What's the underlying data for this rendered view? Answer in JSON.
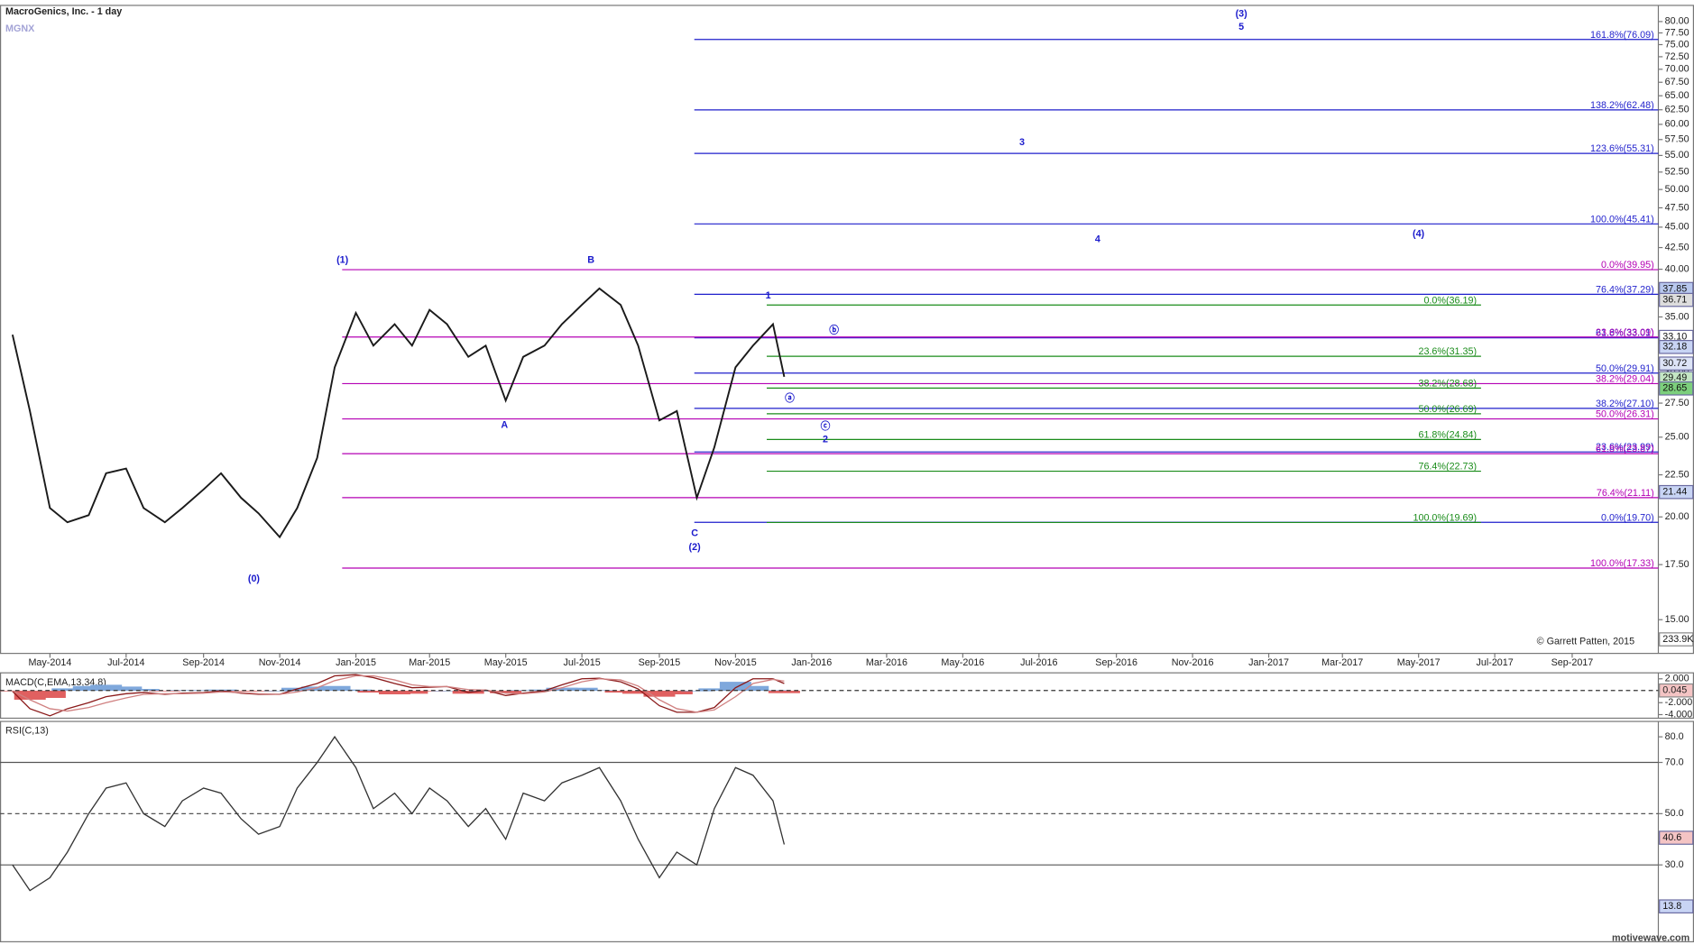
{
  "chart_data": [
    {
      "type": "line",
      "title": "MacroGenics, Inc. - 1 day",
      "subtitle": "MGNX",
      "log_scale": true,
      "xlim": [
        "2014-03-22",
        "2017-11-09"
      ],
      "ylim": [
        13.65,
        83.7
      ],
      "xticks": [
        {
          "value": "2014-05-01",
          "label": "May-2014"
        },
        {
          "value": "2014-07-01",
          "label": "Jul-2014"
        },
        {
          "value": "2014-09-01",
          "label": "Sep-2014"
        },
        {
          "value": "2014-11-01",
          "label": "Nov-2014"
        },
        {
          "value": "2015-01-01",
          "label": "Jan-2015"
        },
        {
          "value": "2015-03-01",
          "label": "Mar-2015"
        },
        {
          "value": "2015-05-01",
          "label": "May-2015"
        },
        {
          "value": "2015-07-01",
          "label": "Jul-2015"
        },
        {
          "value": "2015-09-01",
          "label": "Sep-2015"
        },
        {
          "value": "2015-11-01",
          "label": "Nov-2015"
        },
        {
          "value": "2016-01-01",
          "label": "Jan-2016"
        },
        {
          "value": "2016-03-01",
          "label": "Mar-2016"
        },
        {
          "value": "2016-05-01",
          "label": "May-2016"
        },
        {
          "value": "2016-07-01",
          "label": "Jul-2016"
        },
        {
          "value": "2016-09-01",
          "label": "Sep-2016"
        },
        {
          "value": "2016-11-01",
          "label": "Nov-2016"
        },
        {
          "value": "2017-01-01",
          "label": "Jan-2017"
        },
        {
          "value": "2017-03-01",
          "label": "Mar-2017"
        },
        {
          "value": "2017-05-01",
          "label": "May-2017"
        },
        {
          "value": "2017-07-01",
          "label": "Jul-2017"
        },
        {
          "value": "2017-09-01",
          "label": "Sep-2017"
        }
      ],
      "yticks": [
        {
          "value": 15,
          "label": "15.00"
        },
        {
          "value": 17.5,
          "label": "17.50"
        },
        {
          "value": 20,
          "label": "20.00"
        },
        {
          "value": 22.5,
          "label": "22.50"
        },
        {
          "value": 25,
          "label": "25.00"
        },
        {
          "value": 27.5,
          "label": "27.50"
        },
        {
          "value": 30,
          "label": "30.00"
        },
        {
          "value": 32.5,
          "label": "32.50"
        },
        {
          "value": 35,
          "label": "35.00"
        },
        {
          "value": 37.5,
          "label": "37.50"
        },
        {
          "value": 40,
          "label": "40.00"
        },
        {
          "value": 42.5,
          "label": "42.50"
        },
        {
          "value": 45,
          "label": "45.00"
        },
        {
          "value": 47.5,
          "label": "47.50"
        },
        {
          "value": 50,
          "label": "50.00"
        },
        {
          "value": 52.5,
          "label": "52.50"
        },
        {
          "value": 55,
          "label": "55.00"
        },
        {
          "value": 57.5,
          "label": "57.50"
        },
        {
          "value": 60,
          "label": "60.00"
        },
        {
          "value": 62.5,
          "label": "62.50"
        },
        {
          "value": 65,
          "label": "65.00"
        },
        {
          "value": 67.5,
          "label": "67.50"
        },
        {
          "value": 70,
          "label": "70.00"
        },
        {
          "value": 72.5,
          "label": "72.50"
        },
        {
          "value": 75,
          "label": "75.00"
        },
        {
          "value": 77.5,
          "label": "77.50"
        },
        {
          "value": 80,
          "label": "80.00"
        }
      ],
      "x": [
        "2014-04-01",
        "2014-04-15",
        "2014-05-01",
        "2014-05-15",
        "2014-06-01",
        "2014-06-15",
        "2014-07-01",
        "2014-07-15",
        "2014-08-01",
        "2014-08-15",
        "2014-09-01",
        "2014-09-15",
        "2014-10-01",
        "2014-10-15",
        "2014-11-01",
        "2014-11-15",
        "2014-12-01",
        "2014-12-15",
        "2015-01-01",
        "2015-01-15",
        "2015-02-01",
        "2015-02-15",
        "2015-03-01",
        "2015-03-15",
        "2015-04-01",
        "2015-04-15",
        "2015-05-01",
        "2015-05-15",
        "2015-06-01",
        "2015-06-15",
        "2015-07-01",
        "2015-07-15",
        "2015-08-01",
        "2015-08-15",
        "2015-09-01",
        "2015-09-15",
        "2015-10-01",
        "2015-10-15",
        "2015-11-01",
        "2015-11-15",
        "2015-12-01",
        "2015-12-10"
      ],
      "series": [
        {
          "color": "#1a1a1a",
          "values": [
            33.3,
            26.9,
            20.5,
            19.7,
            20.1,
            22.6,
            22.9,
            20.5,
            19.7,
            20.5,
            21.6,
            22.6,
            21.1,
            20.2,
            18.9,
            20.5,
            23.6,
            30.4,
            35.4,
            32.3,
            34.3,
            32.3,
            35.7,
            34.3,
            31.3,
            32.3,
            27.7,
            31.3,
            32.3,
            34.3,
            36.2,
            37.9,
            36.2,
            32.3,
            26.2,
            26.9,
            21.1,
            24.3,
            30.4,
            32.3,
            34.3,
            29.6
          ]
        }
      ],
      "fib_lines": [
        {
          "value": 76.09,
          "label": "161.8%(76.09)",
          "color": "#1f1fcc",
          "from": "2015-09-29"
        },
        {
          "value": 62.48,
          "label": "138.2%(62.48)",
          "color": "#1f1fcc",
          "from": "2015-09-29"
        },
        {
          "value": 55.31,
          "label": "123.6%(55.31)",
          "color": "#1f1fcc",
          "from": "2015-09-29"
        },
        {
          "value": 45.41,
          "label": "100.0%(45.41)",
          "color": "#1f1fcc",
          "from": "2015-09-29"
        },
        {
          "value": 37.29,
          "label": "76.4%(37.29)",
          "color": "#1f1fcc",
          "from": "2015-09-29"
        },
        {
          "value": 33.01,
          "label": "61.8%(33.01)",
          "color": "#1f1fcc",
          "from": "2015-09-29"
        },
        {
          "value": 29.91,
          "label": "50.0%(29.91)",
          "color": "#1f1fcc",
          "from": "2015-09-29"
        },
        {
          "value": 27.1,
          "label": "38.2%(27.10)",
          "color": "#1f1fcc",
          "from": "2015-09-29"
        },
        {
          "value": 23.99,
          "label": "23.6%(23.99)",
          "color": "#1f1fcc",
          "from": "2015-09-29"
        },
        {
          "value": 19.7,
          "label": "0.0%(19.70)",
          "color": "#1f1fcc",
          "from": "2015-09-29"
        },
        {
          "value": 39.95,
          "label": "0.0%(39.95)",
          "color": "#b400b4",
          "from": "2014-12-21"
        },
        {
          "value": 33.09,
          "label": "23.6%(33.09)",
          "color": "#b400b4",
          "from": "2014-12-21"
        },
        {
          "value": 29.04,
          "label": "38.2%(29.04)",
          "color": "#b400b4",
          "from": "2014-12-21"
        },
        {
          "value": 26.31,
          "label": "50.0%(26.31)",
          "color": "#b400b4",
          "from": "2014-12-21"
        },
        {
          "value": 23.87,
          "label": "61.8%(23.87)",
          "color": "#b400b4",
          "from": "2014-12-21"
        },
        {
          "value": 21.11,
          "label": "76.4%(21.11)",
          "color": "#b400b4",
          "from": "2014-12-21"
        },
        {
          "value": 17.33,
          "label": "100.0%(17.33)",
          "color": "#b400b4",
          "from": "2014-12-21"
        },
        {
          "value": 36.19,
          "label": "0.0%(36.19)",
          "color": "#1a8c1a",
          "from": "2015-11-26",
          "to": "2017-06-20"
        },
        {
          "value": 31.35,
          "label": "23.6%(31.35)",
          "color": "#1a8c1a",
          "from": "2015-11-26",
          "to": "2017-06-20"
        },
        {
          "value": 28.68,
          "label": "38.2%(28.68)",
          "color": "#1a8c1a",
          "from": "2015-11-26",
          "to": "2017-06-20"
        },
        {
          "value": 26.69,
          "label": "50.0%(26.69)",
          "color": "#1a8c1a",
          "from": "2015-11-26",
          "to": "2017-06-20"
        },
        {
          "value": 24.84,
          "label": "61.8%(24.84)",
          "color": "#1a8c1a",
          "from": "2015-11-26",
          "to": "2017-06-20"
        },
        {
          "value": 22.73,
          "label": "76.4%(22.73)",
          "color": "#1a8c1a",
          "from": "2015-11-26",
          "to": "2017-06-20"
        },
        {
          "value": 19.69,
          "label": "100.0%(19.69)",
          "color": "#1a8c1a",
          "from": "2015-11-26",
          "to": "2017-06-20"
        }
      ],
      "wave_labels": [
        "(0)",
        "(1)",
        "A",
        "B",
        "C",
        "(2)",
        "1",
        "ⓐ",
        "ⓑ",
        "ⓒ",
        "2",
        "3",
        "4",
        "5",
        "(3)",
        "(4)"
      ],
      "price_tags": [
        {
          "value": 37.85,
          "color": "#b8c8ee"
        },
        {
          "value": 36.71,
          "color": "#dddddd"
        },
        {
          "value": 33.1,
          "label": "33.10",
          "color": "#ffffff"
        },
        {
          "value": 32.18,
          "color": "#c8d4f4"
        },
        {
          "value": 30.72,
          "color": "#dde4f6"
        },
        {
          "value": 29.49,
          "color": "#c4e6c4"
        },
        {
          "value": 28.65,
          "color": "#7ccf7c"
        },
        {
          "value": 21.44,
          "color": "#c8d4f4"
        }
      ],
      "volume_tag": "233.9K",
      "annotation": "© Garrett Patten, 2015"
    },
    {
      "type": "line",
      "title": "MACD(C,EMA,13,34,8)",
      "ylim": [
        -4.6,
        3.0
      ],
      "yticks": [
        {
          "value": 2,
          "label": "2.000"
        },
        {
          "value": -2,
          "label": "-2.000"
        },
        {
          "value": -4,
          "label": "-4.000"
        }
      ],
      "x": [
        "2014-04-01",
        "2014-04-15",
        "2014-05-01",
        "2014-05-15",
        "2014-06-01",
        "2014-06-15",
        "2014-07-01",
        "2014-07-15",
        "2014-08-01",
        "2014-08-15",
        "2014-09-01",
        "2014-09-15",
        "2014-10-01",
        "2014-10-15",
        "2014-11-01",
        "2014-11-15",
        "2014-12-01",
        "2014-12-15",
        "2015-01-01",
        "2015-01-15",
        "2015-02-01",
        "2015-02-15",
        "2015-03-01",
        "2015-03-15",
        "2015-04-01",
        "2015-04-15",
        "2015-05-01",
        "2015-05-15",
        "2015-06-01",
        "2015-06-15",
        "2015-07-01",
        "2015-07-15",
        "2015-08-01",
        "2015-08-15",
        "2015-09-01",
        "2015-09-15",
        "2015-10-01",
        "2015-10-15",
        "2015-11-01",
        "2015-11-15",
        "2015-12-01",
        "2015-12-10"
      ],
      "series": [
        {
          "color": "#8b1a1a",
          "values": [
            -0.1,
            -3.0,
            -4.2,
            -3.0,
            -2.0,
            -1.0,
            -0.5,
            -0.3,
            -0.6,
            -0.4,
            -0.3,
            0.0,
            -0.4,
            -0.6,
            -0.6,
            0.3,
            1.2,
            2.5,
            2.7,
            2.2,
            1.2,
            0.5,
            0.6,
            0.7,
            -0.3,
            0.1,
            -0.8,
            -0.4,
            0.0,
            1.0,
            2.0,
            2.1,
            1.5,
            0.3,
            -2.5,
            -3.6,
            -3.6,
            -2.8,
            0.5,
            2.0,
            2.0,
            1.2
          ]
        },
        {
          "color": "#d08080",
          "values": [
            0,
            -1.5,
            -3.0,
            -3.4,
            -2.8,
            -2.0,
            -1.2,
            -0.6,
            -0.5,
            -0.5,
            -0.4,
            -0.2,
            -0.3,
            -0.5,
            -0.6,
            -0.2,
            0.5,
            1.7,
            2.5,
            2.5,
            1.8,
            1.0,
            0.7,
            0.7,
            0.2,
            0.1,
            -0.4,
            -0.5,
            -0.2,
            0.5,
            1.5,
            2.0,
            1.8,
            0.8,
            -1.5,
            -3.0,
            -3.6,
            -3.2,
            -1.0,
            1.2,
            1.9,
            1.6
          ]
        }
      ],
      "histogram": {
        "positive_color": "#7fa8dc",
        "negative_color": "#e06060",
        "values": [
          -0.1,
          -1.5,
          -1.2,
          0.4,
          0.8,
          1.0,
          0.7,
          0.3,
          -0.1,
          0.1,
          0.1,
          0.2,
          -0.1,
          -0.1,
          0.0,
          0.5,
          0.7,
          0.8,
          0.2,
          -0.3,
          -0.6,
          -0.5,
          -0.1,
          0.0,
          -0.5,
          0.0,
          -0.4,
          0.1,
          0.2,
          0.5,
          0.5,
          0.1,
          -0.3,
          -0.5,
          -1.0,
          -0.6,
          0.0,
          0.4,
          1.5,
          0.8,
          0.1,
          -0.4
        ]
      },
      "last_value": 0.045,
      "last_value_color": "#f4c4c4"
    },
    {
      "type": "line",
      "title": "RSI(C,13)",
      "ylim": [
        0,
        86
      ],
      "yticks": [
        {
          "value": 80,
          "label": "80.0"
        },
        {
          "value": 70,
          "label": "70.0"
        },
        {
          "value": 50,
          "label": "50.0"
        },
        {
          "value": 30,
          "label": "30.0"
        }
      ],
      "levels": [
        70,
        30
      ],
      "midline": 50,
      "x": [
        "2014-04-01",
        "2014-04-15",
        "2014-05-01",
        "2014-05-15",
        "2014-06-01",
        "2014-06-15",
        "2014-07-01",
        "2014-07-15",
        "2014-08-01",
        "2014-08-15",
        "2014-09-01",
        "2014-09-15",
        "2014-10-01",
        "2014-10-15",
        "2014-11-01",
        "2014-11-15",
        "2014-12-01",
        "2014-12-15",
        "2015-01-01",
        "2015-01-15",
        "2015-02-01",
        "2015-02-15",
        "2015-03-01",
        "2015-03-15",
        "2015-04-01",
        "2015-04-15",
        "2015-05-01",
        "2015-05-15",
        "2015-06-01",
        "2015-06-15",
        "2015-07-01",
        "2015-07-15",
        "2015-08-01",
        "2015-08-15",
        "2015-09-01",
        "2015-09-15",
        "2015-10-01",
        "2015-10-15",
        "2015-11-01",
        "2015-11-15",
        "2015-12-01",
        "2015-12-10"
      ],
      "series": [
        {
          "color": "#333333",
          "values": [
            30,
            20,
            25,
            35,
            50,
            60,
            62,
            50,
            45,
            55,
            60,
            58,
            48,
            42,
            45,
            60,
            70,
            80,
            68,
            52,
            58,
            50,
            60,
            55,
            45,
            52,
            40,
            58,
            55,
            62,
            65,
            68,
            55,
            40,
            25,
            35,
            30,
            52,
            68,
            65,
            55,
            38
          ]
        }
      ],
      "tags": [
        {
          "value": 40.6,
          "color": "#f4c4c4"
        },
        {
          "value": 13.8,
          "color": "#c8d4f4"
        }
      ],
      "watermark": "motivewave.com"
    }
  ]
}
